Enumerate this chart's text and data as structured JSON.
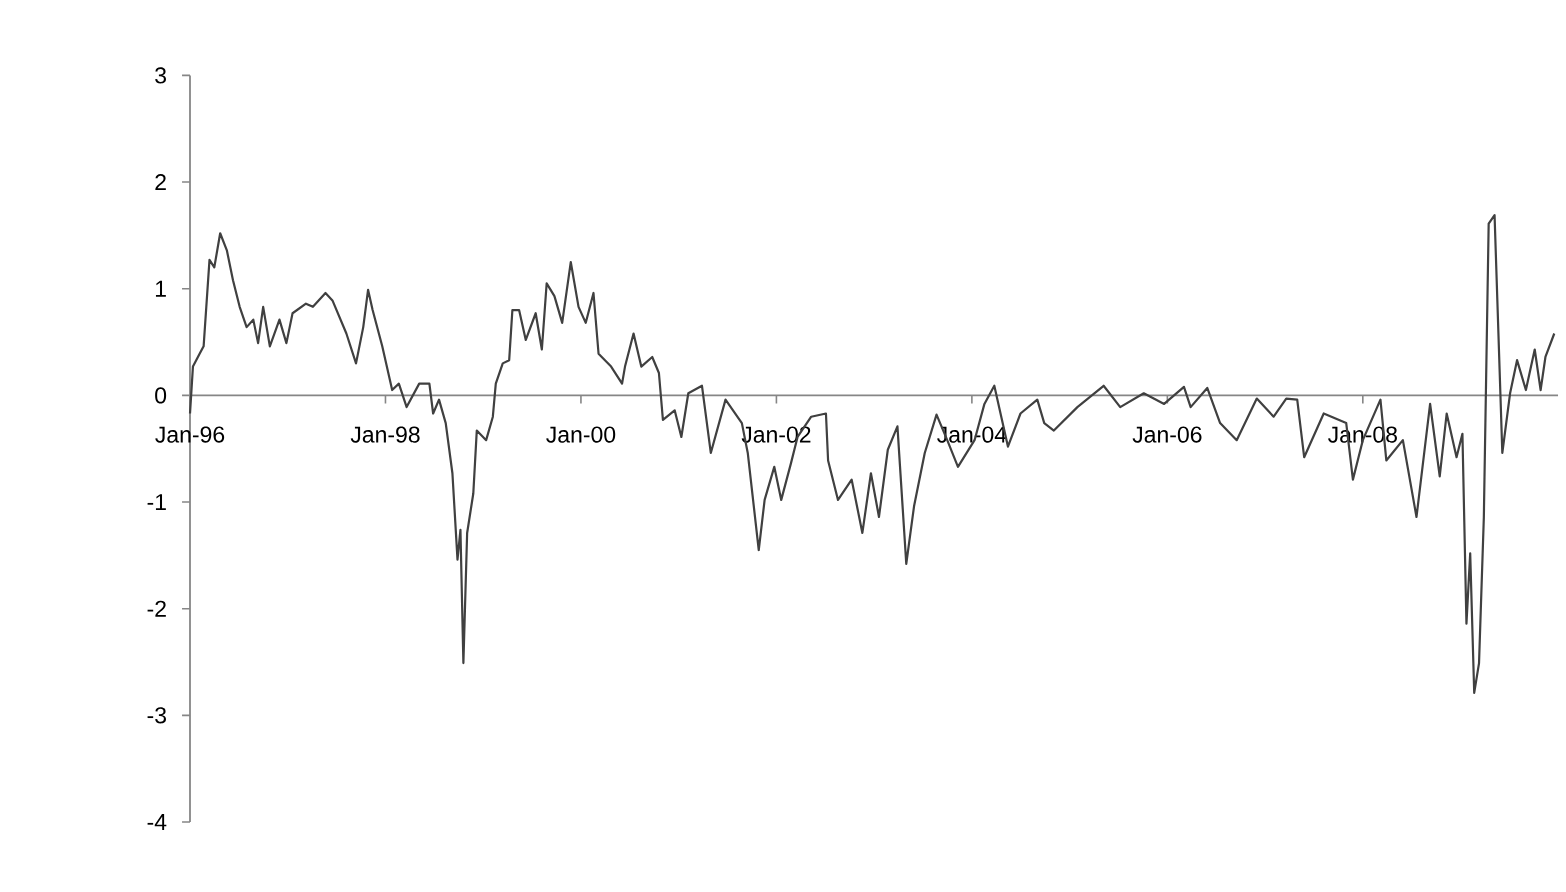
{
  "chart_data": {
    "type": "line",
    "x": [
      "1996-01-01",
      "1996-01-12",
      "1996-02-06",
      "1996-02-21",
      "1996-03-14",
      "1996-04-01",
      "1996-04-23",
      "1996-05-18",
      "1996-06-10",
      "1996-07-05",
      "1996-07-31",
      "1996-08-25",
      "1996-09-12",
      "1996-10-01",
      "1996-10-26",
      "1996-12-01",
      "1996-12-27",
      "1997-01-19",
      "1997-03-10",
      "1997-04-05",
      "1997-05-22",
      "1997-06-17",
      "1997-08-08",
      "1997-09-13",
      "1997-10-10",
      "1997-10-28",
      "1997-11-14",
      "1997-12-20",
      "1998-01-26",
      "1998-02-20",
      "1998-03-21",
      "1998-05-07",
      "1998-06-14",
      "1998-06-28",
      "1998-07-20",
      "1998-08-14",
      "1998-09-08",
      "1998-09-27",
      "1998-10-08",
      "1998-10-19",
      "1998-11-02",
      "1998-11-25",
      "1998-12-08",
      "1999-01-12",
      "1999-02-06",
      "1999-02-17",
      "1999-03-15",
      "1999-04-08",
      "1999-04-20",
      "1999-05-15",
      "1999-06-09",
      "1999-07-16",
      "1999-08-08",
      "1999-08-26",
      "1999-09-24",
      "1999-10-23",
      "1999-11-24",
      "1999-12-23",
      "2000-01-19",
      "2000-02-17",
      "2000-03-07",
      "2000-04-23",
      "2000-06-03",
      "2000-06-14",
      "2000-07-16",
      "2000-08-14",
      "2000-09-24",
      "2000-10-19",
      "2000-11-03",
      "2000-12-17",
      "2001-01-11",
      "2001-02-06",
      "2001-03-29",
      "2001-05-01",
      "2001-06-25",
      "2001-08-25",
      "2001-09-16",
      "2001-10-27",
      "2001-11-18",
      "2001-12-24",
      "2002-01-19",
      "2002-02-24",
      "2002-03-21",
      "2002-05-11",
      "2002-07-05",
      "2002-07-13",
      "2002-08-19",
      "2002-10-09",
      "2002-11-18",
      "2002-12-20",
      "2003-01-19",
      "2003-02-21",
      "2003-03-29",
      "2003-05-01",
      "2003-05-30",
      "2003-07-09",
      "2003-08-22",
      "2003-10-01",
      "2003-11-10",
      "2004-01-11",
      "2004-02-17",
      "2004-03-25",
      "2004-05-15",
      "2004-07-01",
      "2004-09-02",
      "2004-09-28",
      "2004-11-03",
      "2005-01-30",
      "2005-05-08",
      "2005-07-09",
      "2005-10-05",
      "2005-12-20",
      "2006-03-04",
      "2006-03-29",
      "2006-05-30",
      "2006-07-17",
      "2006-09-17",
      "2006-12-01",
      "2007-02-02",
      "2007-03-21",
      "2007-05-01",
      "2007-05-27",
      "2007-08-08",
      "2007-10-31",
      "2007-11-25",
      "2008-01-01",
      "2008-03-07",
      "2008-03-29",
      "2008-05-30",
      "2008-07-20",
      "2008-09-09",
      "2008-10-15",
      "2008-11-10",
      "2008-12-17",
      "2009-01-08",
      "2009-01-23",
      "2009-02-06",
      "2009-02-21",
      "2009-03-11",
      "2009-03-29",
      "2009-04-16",
      "2009-05-08",
      "2009-06-06",
      "2009-07-05",
      "2009-07-31",
      "2009-09-02",
      "2009-10-05",
      "2009-10-27",
      "2009-11-14",
      "2009-12-17"
    ],
    "series": [
      {
        "color": "#404040",
        "values": [
          -0.17,
          0.27,
          0.39,
          0.46,
          1.27,
          1.2,
          1.52,
          1.36,
          1.08,
          0.83,
          0.64,
          0.71,
          0.49,
          0.83,
          0.46,
          0.71,
          0.49,
          0.77,
          0.86,
          0.83,
          0.96,
          0.89,
          0.58,
          0.3,
          0.64,
          0.99,
          0.8,
          0.46,
          0.05,
          0.11,
          -0.11,
          0.11,
          0.11,
          -0.17,
          -0.04,
          -0.26,
          -0.73,
          -1.54,
          -1.26,
          -2.51,
          -1.29,
          -0.92,
          -0.33,
          -0.42,
          -0.2,
          0.11,
          0.3,
          0.33,
          0.8,
          0.8,
          0.52,
          0.77,
          0.43,
          1.05,
          0.93,
          0.68,
          1.25,
          0.83,
          0.68,
          0.96,
          0.39,
          0.27,
          0.11,
          0.27,
          0.58,
          0.27,
          0.36,
          0.21,
          -0.23,
          -0.14,
          -0.39,
          0.02,
          0.09,
          -0.54,
          -0.04,
          -0.26,
          -0.54,
          -1.45,
          -0.98,
          -0.67,
          -0.98,
          -0.64,
          -0.39,
          -0.2,
          -0.17,
          -0.61,
          -0.98,
          -0.79,
          -1.29,
          -0.73,
          -1.14,
          -0.51,
          -0.29,
          -1.58,
          -1.04,
          -0.54,
          -0.18,
          -0.42,
          -0.67,
          -0.42,
          -0.08,
          0.09,
          -0.48,
          -0.17,
          -0.04,
          -0.26,
          -0.33,
          -0.11,
          0.09,
          -0.11,
          0.02,
          -0.08,
          0.08,
          -0.11,
          0.07,
          -0.26,
          -0.42,
          -0.03,
          -0.2,
          -0.03,
          -0.04,
          -0.58,
          -0.17,
          -0.26,
          -0.79,
          -0.42,
          -0.04,
          -0.61,
          -0.42,
          -1.14,
          -0.08,
          -0.76,
          -0.17,
          -0.58,
          -0.36,
          -2.14,
          -1.48,
          -2.79,
          -2.51,
          -1.14,
          1.61,
          1.69,
          -0.54,
          0.02,
          0.33,
          0.05,
          0.43,
          0.05,
          0.36,
          0.58
        ]
      }
    ],
    "xlim": [
      "1996-01-01",
      "2009-12-31"
    ],
    "xticks": [
      {
        "value": "1996-01-01",
        "label": "Jan-96"
      },
      {
        "value": "1998-01-01",
        "label": "Jan-98"
      },
      {
        "value": "2000-01-01",
        "label": "Jan-00"
      },
      {
        "value": "2002-01-01",
        "label": "Jan-02"
      },
      {
        "value": "2004-01-01",
        "label": "Jan-04"
      },
      {
        "value": "2006-01-01",
        "label": "Jan-06"
      },
      {
        "value": "2008-01-01",
        "label": "Jan-08"
      }
    ],
    "ylim": [
      -4,
      3
    ],
    "yticks": [
      -4,
      -3,
      -2,
      -1,
      0,
      1,
      2,
      3
    ]
  }
}
